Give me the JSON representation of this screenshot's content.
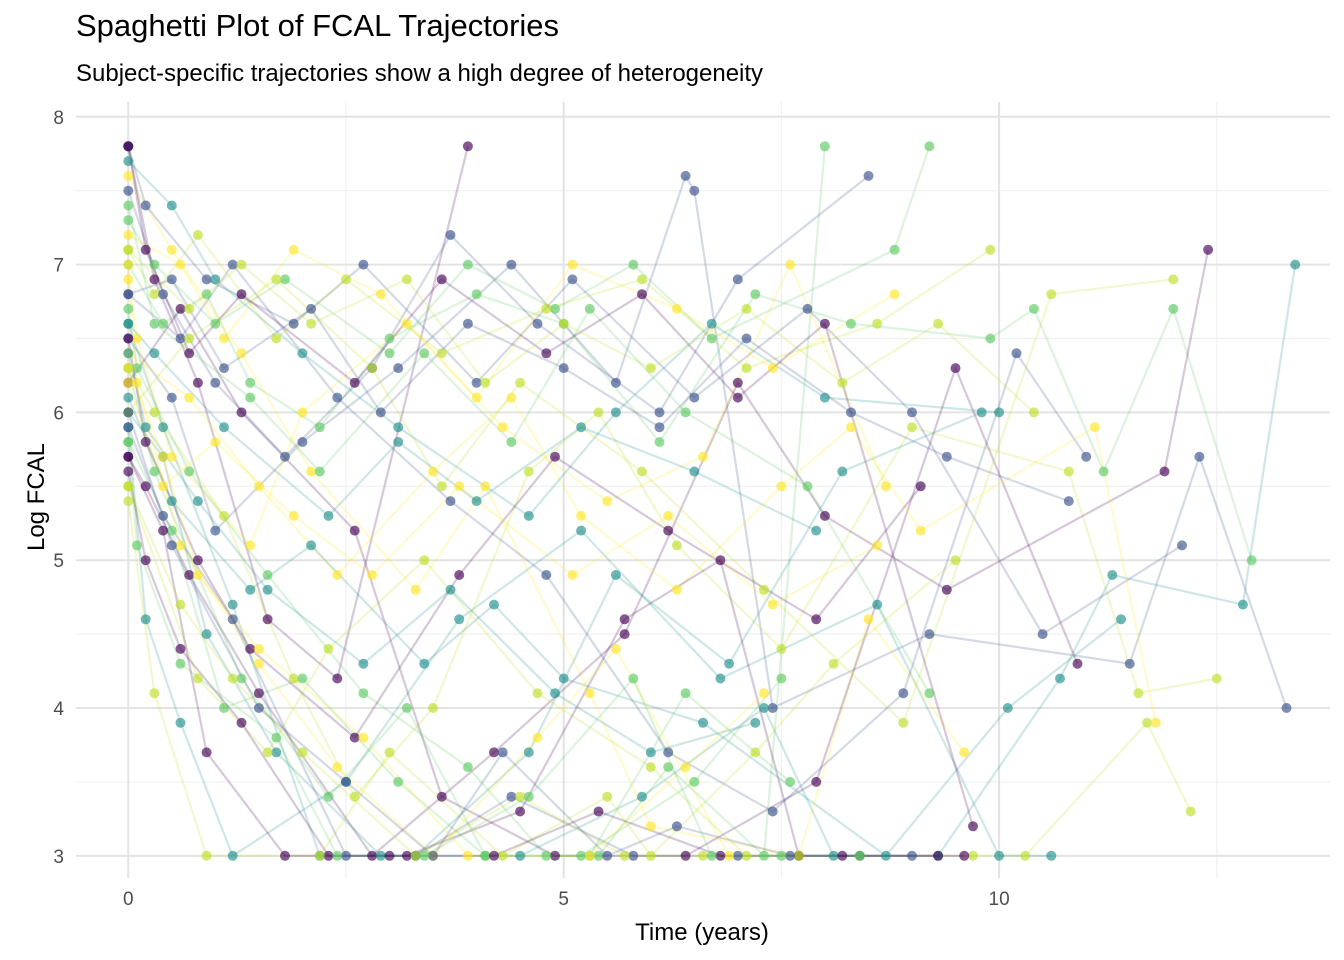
{
  "chart_data": {
    "type": "line",
    "title": "Spaghetti Plot of FCAL Trajectories",
    "subtitle": "Subject-specific trajectories show a high degree of heterogeneity",
    "xlabel": "Time (years)",
    "ylabel": "Log FCAL",
    "xlim": [
      -0.6,
      13.8
    ],
    "ylim": [
      2.85,
      8.1
    ],
    "x_ticks": [
      0,
      5,
      10
    ],
    "y_ticks": [
      3,
      4,
      5,
      6,
      7,
      8
    ],
    "grid": true,
    "legend": "none",
    "palette": [
      "#440154",
      "#3b528b",
      "#21918c",
      "#5ec962",
      "#bddf26",
      "#fde725"
    ],
    "series": [
      {
        "x": [
          0,
          0.3,
          0.8,
          1.6,
          2.4,
          3.9
        ],
        "y": [
          7.8,
          6.9,
          6.2,
          4.6,
          4.2,
          7.8
        ]
      },
      {
        "x": [
          0,
          0.5,
          1.0,
          2.0,
          3.1,
          4.4,
          5.6,
          6.4,
          6.5,
          7.4,
          9.2,
          11.5,
          12.3,
          13.3
        ],
        "y": [
          6.5,
          6.1,
          5.2,
          5.8,
          6.3,
          7.0,
          6.2,
          7.6,
          7.5,
          4.0,
          4.5,
          4.3,
          5.7,
          4.0
        ]
      },
      {
        "x": [
          0,
          0.2,
          0.6,
          1.2,
          2.5,
          3.8,
          5.2,
          6.8,
          8.6,
          10.0,
          10.6
        ],
        "y": [
          5.9,
          4.6,
          3.9,
          3.0,
          3.5,
          4.6,
          5.2,
          4.2,
          4.7,
          3.0,
          3.0
        ]
      },
      {
        "x": [
          0,
          0.4,
          0.9,
          1.4,
          2.2,
          3.0,
          4.0,
          5.0,
          6.1,
          7.2,
          8.3,
          9.9,
          10.4,
          11.2,
          12.0,
          12.9
        ],
        "y": [
          7.0,
          6.6,
          6.8,
          6.2,
          5.9,
          6.5,
          6.8,
          6.6,
          5.8,
          6.8,
          6.6,
          6.5,
          6.7,
          5.6,
          6.7,
          5.0
        ]
      },
      {
        "x": [
          0,
          0.3,
          1.1,
          1.9,
          2.6,
          3.5,
          4.6,
          5.4,
          6.3,
          7.5,
          9.0,
          10.8,
          11.6,
          12.5
        ],
        "y": [
          6.3,
          6.0,
          5.3,
          4.2,
          3.4,
          4.0,
          5.6,
          6.0,
          5.1,
          4.4,
          5.9,
          5.6,
          4.1,
          4.2
        ]
      },
      {
        "x": [
          0,
          0.5,
          1.3,
          2.1,
          3.3,
          4.1,
          5.3,
          6.0,
          7.7,
          8.5,
          9.6
        ],
        "y": [
          7.6,
          7.1,
          6.4,
          5.6,
          4.8,
          5.5,
          4.1,
          3.2,
          3.0,
          4.6,
          3.7
        ]
      },
      {
        "x": [
          0,
          0.2,
          0.7,
          1.5,
          2.8,
          4.2,
          5.7,
          7.0,
          8.0,
          9.4,
          11.9,
          12.4
        ],
        "y": [
          5.7,
          5.5,
          4.9,
          4.1,
          3.0,
          3.7,
          4.5,
          6.2,
          5.3,
          4.8,
          5.6,
          7.1
        ]
      },
      {
        "x": [
          0,
          0.6,
          1.2,
          2.4,
          3.7,
          4.8,
          6.2,
          7.4,
          8.9,
          10.2,
          11.0
        ],
        "y": [
          6.8,
          6.5,
          7.0,
          6.1,
          5.4,
          4.9,
          3.7,
          3.3,
          4.1,
          6.4,
          5.7
        ]
      },
      {
        "x": [
          0,
          0.4,
          0.9,
          1.7,
          2.9,
          4.5,
          5.9,
          7.3,
          8.1,
          9.3,
          10.7,
          11.3,
          12.8,
          13.4
        ],
        "y": [
          6.0,
          5.7,
          4.5,
          3.7,
          3.0,
          3.0,
          3.4,
          4.0,
          3.0,
          3.0,
          4.2,
          4.9,
          4.7,
          7.0
        ]
      },
      {
        "x": [
          0,
          0.3,
          1.0,
          1.8,
          3.0,
          3.9,
          4.9,
          5.8,
          6.7,
          8.8,
          9.2
        ],
        "y": [
          7.3,
          7.0,
          6.6,
          6.9,
          6.4,
          7.0,
          6.7,
          7.0,
          6.5,
          7.1,
          7.8
        ]
      },
      {
        "x": [
          0,
          0.8,
          1.6,
          2.3,
          3.4,
          4.7,
          6.0,
          7.1,
          8.4,
          9.7,
          10.3,
          11.7,
          12.2
        ],
        "y": [
          5.5,
          4.2,
          3.7,
          4.4,
          5.0,
          4.1,
          3.6,
          3.0,
          3.0,
          3.0,
          3.0,
          3.9,
          3.3
        ]
      },
      {
        "x": [
          0,
          0.1,
          0.5,
          1.4,
          2.0,
          3.2,
          4.3,
          5.5,
          6.6,
          7.6,
          8.7
        ],
        "y": [
          6.9,
          6.5,
          5.7,
          5.1,
          6.0,
          6.6,
          5.9,
          5.4,
          5.7,
          7.0,
          5.5
        ]
      },
      {
        "x": [
          0,
          0.6,
          1.3,
          2.6,
          3.6,
          4.9,
          6.4,
          7.9,
          9.5,
          10.9
        ],
        "y": [
          6.2,
          6.7,
          6.0,
          5.2,
          3.4,
          3.0,
          3.0,
          3.5,
          6.3,
          4.3
        ]
      },
      {
        "x": [
          0,
          0.2,
          0.9,
          1.9,
          2.7,
          4.0,
          5.1,
          6.5,
          7.8,
          9.0,
          10.5,
          12.1
        ],
        "y": [
          7.8,
          7.4,
          6.9,
          6.6,
          7.0,
          6.2,
          6.9,
          6.1,
          6.7,
          6.0,
          4.5,
          5.1
        ]
      },
      {
        "x": [
          0,
          0.4,
          1.2,
          2.2,
          3.3,
          4.6,
          5.6,
          6.9,
          8.2,
          9.8
        ],
        "y": [
          6.6,
          5.9,
          4.7,
          3.0,
          3.0,
          3.7,
          4.9,
          4.3,
          5.6,
          6.0
        ]
      },
      {
        "x": [
          0,
          0.5,
          1.1,
          2.0,
          3.1,
          4.1,
          5.4,
          6.2,
          7.3,
          8.0
        ],
        "y": [
          5.8,
          5.2,
          4.0,
          4.2,
          3.5,
          3.0,
          3.0,
          3.6,
          3.0,
          7.8
        ]
      },
      {
        "x": [
          0,
          0.3,
          0.8,
          1.7,
          2.5,
          3.6,
          4.8,
          5.9,
          7.1,
          8.6,
          9.9
        ],
        "y": [
          7.1,
          6.8,
          7.2,
          6.5,
          6.9,
          6.4,
          6.7,
          6.9,
          6.3,
          6.6,
          7.1
        ]
      },
      {
        "x": [
          0,
          0.7,
          1.5,
          2.4,
          3.5,
          4.4,
          5.2,
          6.3,
          7.5,
          8.3,
          9.1,
          11.1,
          11.8
        ],
        "y": [
          6.4,
          6.1,
          5.5,
          4.9,
          5.6,
          6.1,
          5.3,
          4.8,
          5.5,
          5.9,
          5.2,
          5.9,
          3.9
        ]
      },
      {
        "x": [
          0,
          0.2,
          0.6,
          1.3,
          2.3,
          3.2,
          4.5,
          5.7,
          6.8,
          7.7,
          9.3
        ],
        "y": [
          5.6,
          5.0,
          4.4,
          3.9,
          3.0,
          3.0,
          3.3,
          4.6,
          5.0,
          3.0,
          3.0
        ]
      },
      {
        "x": [
          0,
          0.4,
          1.0,
          1.8,
          2.8,
          3.7,
          4.7,
          6.1,
          7.0,
          8.5
        ],
        "y": [
          7.5,
          6.8,
          6.2,
          5.7,
          6.3,
          7.2,
          6.6,
          6.0,
          6.9,
          7.6
        ]
      },
      {
        "x": [
          0,
          0.5,
          1.4,
          2.1,
          3.4,
          4.2,
          5.0,
          6.6,
          8.7,
          10.1,
          11.4
        ],
        "y": [
          6.1,
          5.4,
          4.8,
          5.1,
          4.3,
          4.7,
          4.2,
          3.9,
          3.0,
          4.0,
          4.6
        ]
      },
      {
        "x": [
          0,
          0.1,
          0.7,
          1.6,
          2.7,
          3.9,
          4.8,
          5.3,
          6.4,
          7.6
        ],
        "y": [
          6.7,
          6.3,
          5.6,
          4.9,
          4.1,
          3.6,
          3.0,
          3.0,
          4.1,
          3.5
        ]
      },
      {
        "x": [
          0,
          0.3,
          0.9,
          2.2,
          3.0,
          4.3,
          5.5,
          6.0,
          7.2,
          8.1,
          9.5
        ],
        "y": [
          5.4,
          4.1,
          3.0,
          3.0,
          3.7,
          3.0,
          3.4,
          3.0,
          3.7,
          4.3,
          5.0
        ]
      },
      {
        "x": [
          0,
          0.6,
          1.1,
          1.9,
          2.9,
          4.0,
          5.1,
          6.3,
          7.4,
          8.8
        ],
        "y": [
          7.2,
          7.0,
          6.5,
          7.1,
          6.8,
          6.1,
          7.0,
          6.7,
          6.3,
          6.8
        ]
      },
      {
        "x": [
          0,
          0.2,
          0.8,
          1.4,
          2.6,
          3.8,
          4.9,
          6.2,
          7.9,
          9.1
        ],
        "y": [
          6.5,
          5.8,
          5.0,
          4.4,
          3.8,
          4.9,
          5.7,
          5.2,
          4.6,
          5.5
        ]
      },
      {
        "x": [
          0,
          0.4,
          1.2,
          2.5,
          3.3,
          4.4,
          5.8,
          7.0,
          8.4
        ],
        "y": [
          5.9,
          5.3,
          4.6,
          3.0,
          3.0,
          3.4,
          3.0,
          3.0,
          3.0
        ]
      },
      {
        "x": [
          0,
          0.5,
          1.0,
          2.0,
          3.1,
          4.6,
          5.6,
          6.7,
          8.0,
          10.0
        ],
        "y": [
          7.7,
          7.4,
          6.9,
          6.4,
          5.9,
          5.3,
          6.0,
          6.6,
          6.1,
          6.0
        ]
      },
      {
        "x": [
          0,
          0.3,
          1.3,
          2.3,
          3.2,
          4.1,
          5.2,
          6.5,
          7.5
        ],
        "y": [
          6.3,
          5.6,
          4.2,
          3.4,
          4.0,
          3.0,
          3.0,
          3.5,
          4.2
        ]
      },
      {
        "x": [
          0,
          0.7,
          1.7,
          2.8,
          3.6,
          4.5,
          5.9,
          7.3,
          8.9,
          10.6,
          12.0
        ],
        "y": [
          6.0,
          6.5,
          6.9,
          6.3,
          5.5,
          6.2,
          5.6,
          4.8,
          3.9,
          6.8,
          6.9
        ]
      },
      {
        "x": [
          0,
          0.1,
          0.6,
          1.5,
          2.4,
          3.5,
          4.7,
          5.6,
          6.9
        ],
        "y": [
          7.0,
          6.2,
          5.1,
          4.3,
          3.6,
          3.0,
          3.8,
          4.4,
          3.0
        ]
      },
      {
        "x": [
          0,
          0.4,
          0.9,
          1.8,
          3.0,
          4.2,
          5.4,
          6.8,
          8.2,
          9.6
        ],
        "y": [
          5.7,
          5.2,
          3.7,
          3.0,
          3.0,
          3.0,
          3.3,
          3.0,
          3.0,
          3.0
        ]
      },
      {
        "x": [
          0,
          0.5,
          1.1,
          2.1,
          2.9,
          3.9,
          5.0,
          6.1,
          7.1,
          8.3,
          9.4,
          10.8
        ],
        "y": [
          6.8,
          6.9,
          6.3,
          6.7,
          6.0,
          6.6,
          6.3,
          5.9,
          6.5,
          6.0,
          5.7,
          5.4
        ]
      },
      {
        "x": [
          0,
          0.2,
          0.8,
          1.6,
          2.7,
          3.7,
          4.9,
          6.0,
          7.2
        ],
        "y": [
          6.4,
          5.9,
          5.4,
          4.8,
          4.3,
          4.8,
          4.1,
          3.7,
          3.9
        ]
      },
      {
        "x": [
          0,
          0.3,
          1.4,
          2.2,
          3.4,
          4.4,
          5.3,
          6.4,
          7.8,
          9.2
        ],
        "y": [
          7.4,
          6.6,
          6.1,
          5.6,
          6.4,
          5.8,
          6.7,
          6.0,
          5.5,
          4.1
        ]
      },
      {
        "x": [
          0,
          0.6,
          1.2,
          2.0,
          3.3,
          4.5,
          5.7,
          6.6,
          7.7
        ],
        "y": [
          5.5,
          4.7,
          4.2,
          3.7,
          3.0,
          3.4,
          3.0,
          3.0,
          3.0
        ]
      },
      {
        "x": [
          0,
          0.4,
          1.0,
          1.9,
          2.8,
          3.8,
          5.1,
          6.2,
          7.4,
          8.6
        ],
        "y": [
          6.2,
          5.5,
          5.8,
          5.3,
          4.9,
          5.5,
          4.9,
          5.3,
          4.7,
          5.1
        ]
      },
      {
        "x": [
          0,
          0.2,
          0.7,
          1.3,
          2.6,
          3.6,
          4.8,
          5.9,
          7.0,
          8.0,
          9.7
        ],
        "y": [
          7.8,
          7.1,
          6.4,
          6.8,
          6.2,
          6.9,
          6.4,
          6.8,
          6.1,
          6.6,
          3.2
        ]
      },
      {
        "x": [
          0,
          0.5,
          1.5,
          2.5,
          3.5,
          4.3,
          5.5,
          6.3,
          7.6,
          9.0
        ],
        "y": [
          6.0,
          5.1,
          4.0,
          3.5,
          3.0,
          3.7,
          3.0,
          3.2,
          3.0,
          3.0
        ]
      },
      {
        "x": [
          0,
          0.3,
          1.1,
          2.3,
          3.1,
          4.0,
          5.2,
          6.5,
          7.9
        ],
        "y": [
          6.6,
          6.4,
          5.9,
          5.3,
          5.8,
          5.4,
          5.9,
          5.6,
          5.2
        ]
      },
      {
        "x": [
          0,
          0.1,
          0.6,
          1.7,
          2.4,
          3.4,
          4.6,
          5.8,
          6.7,
          7.5,
          8.4
        ],
        "y": [
          5.8,
          5.1,
          4.3,
          3.8,
          3.0,
          3.0,
          3.4,
          4.2,
          3.0,
          3.0,
          3.0
        ]
      },
      {
        "x": [
          0,
          0.7,
          1.3,
          2.1,
          3.2,
          4.1,
          5.0,
          6.0,
          7.1,
          8.2,
          9.3,
          10.4
        ],
        "y": [
          7.1,
          6.7,
          7.0,
          6.6,
          6.9,
          6.2,
          6.6,
          6.3,
          6.7,
          6.2,
          6.6,
          6.0
        ]
      },
      {
        "x": [
          0,
          0.4,
          0.8,
          1.5,
          2.7,
          3.9,
          5.3,
          6.4,
          7.3
        ],
        "y": [
          6.3,
          5.7,
          4.9,
          4.4,
          3.8,
          3.0,
          3.0,
          3.6,
          4.1
        ]
      }
    ]
  }
}
